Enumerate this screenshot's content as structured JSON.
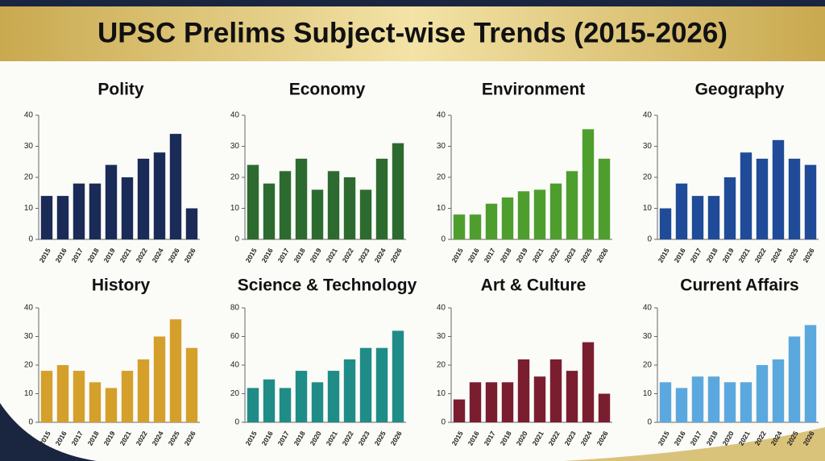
{
  "title": "UPSC Prelims Subject-wise Trends (2015-2026)",
  "chart_data": [
    {
      "type": "bar",
      "title": "Polity",
      "color": "#1b2b57",
      "categories": [
        "2015",
        "2016",
        "2017",
        "2018",
        "2019",
        "2021",
        "2022",
        "2024",
        "2026",
        "2026"
      ],
      "values": [
        14,
        14,
        18,
        18,
        24,
        20,
        26,
        28,
        34,
        10
      ],
      "ylim": [
        0,
        40
      ],
      "yticks": [
        0,
        10,
        20,
        30,
        40
      ]
    },
    {
      "type": "bar",
      "title": "Economy",
      "color": "#2d6a2f",
      "categories": [
        "2015",
        "2016",
        "2017",
        "2018",
        "2019",
        "2021",
        "2022",
        "2023",
        "2024",
        "2026"
      ],
      "values": [
        24,
        18,
        22,
        26,
        16,
        22,
        20,
        16,
        26,
        31
      ],
      "ylim": [
        0,
        40
      ],
      "yticks": [
        0,
        10,
        20,
        30,
        40
      ]
    },
    {
      "type": "bar",
      "title": "Environment",
      "color": "#4e9e2e",
      "categories": [
        "2015",
        "2016",
        "2017",
        "2018",
        "2019",
        "2021",
        "2022",
        "2023",
        "2025",
        "2026"
      ],
      "values": [
        8,
        8,
        11.5,
        13.5,
        15.5,
        16,
        18,
        22,
        35.5,
        26
      ],
      "ylim": [
        0,
        40
      ],
      "yticks": [
        0,
        10,
        20,
        30,
        40
      ]
    },
    {
      "type": "bar",
      "title": "Geography",
      "color": "#1f4b98",
      "categories": [
        "2015",
        "2016",
        "2017",
        "2018",
        "2019",
        "2021",
        "2022",
        "2024",
        "2025",
        "2026"
      ],
      "values": [
        10,
        18,
        14,
        14,
        20,
        28,
        26,
        32,
        26,
        24
      ],
      "ylim": [
        0,
        40
      ],
      "yticks": [
        0,
        10,
        20,
        30,
        40
      ]
    },
    {
      "type": "bar",
      "title": "History",
      "color": "#d4a02b",
      "categories": [
        "2015",
        "2016",
        "2017",
        "2018",
        "2019",
        "2021",
        "2022",
        "2024",
        "2025",
        "2026"
      ],
      "values": [
        18,
        20,
        18,
        14,
        12,
        18,
        22,
        30,
        36,
        26
      ],
      "ylim": [
        0,
        40
      ],
      "yticks": [
        0,
        10,
        20,
        30,
        40
      ]
    },
    {
      "type": "bar",
      "title": "Science & Technology",
      "color": "#1f8c88",
      "categories": [
        "2015",
        "2016",
        "2017",
        "2018",
        "2020",
        "2021",
        "2022",
        "2023",
        "2025",
        "2026"
      ],
      "values": [
        24,
        30,
        24,
        36,
        28,
        36,
        44,
        52,
        52,
        64
      ],
      "ylim": [
        0,
        80
      ],
      "yticks": [
        0,
        20,
        40,
        60,
        80
      ]
    },
    {
      "type": "bar",
      "title": "Art & Culture",
      "color": "#7a1e2f",
      "categories": [
        "2015",
        "2016",
        "2017",
        "2018",
        "2020",
        "2021",
        "2022",
        "2023",
        "2024",
        "2026"
      ],
      "values": [
        8,
        14,
        14,
        14,
        22,
        16,
        22,
        18,
        28,
        10
      ],
      "ylim": [
        0,
        40
      ],
      "yticks": [
        0,
        10,
        20,
        30,
        40
      ]
    },
    {
      "type": "bar",
      "title": "Current Affairs",
      "color": "#5ba8de",
      "categories": [
        "2015",
        "2016",
        "2017",
        "2018",
        "2020",
        "2021",
        "2022",
        "2024",
        "2025",
        "2026"
      ],
      "values": [
        14,
        12,
        16,
        16,
        14,
        14,
        20,
        22,
        30,
        34
      ],
      "ylim": [
        0,
        40
      ],
      "yticks": [
        0,
        10,
        20,
        30,
        40
      ]
    }
  ]
}
